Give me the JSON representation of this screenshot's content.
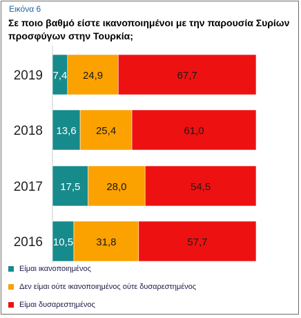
{
  "figure_label": "Εικόνα 6",
  "title": "Σε ποιο βαθμό είστε ικανοποιημένοι με την παρουσία Συρίων προσφύγων στην Τουρκία;",
  "chart_data": {
    "type": "bar",
    "orientation": "horizontal",
    "stacked": true,
    "title": "Σε ποιο βαθμό είστε ικανοποιημένοι με την παρουσία Συρίων προσφύγων στην Τουρκία;",
    "categories": [
      "2019",
      "2018",
      "2017",
      "2016"
    ],
    "series": [
      {
        "name": "Είμαι ικανοποιημένος",
        "color": "#178a8c",
        "values": [
          7.4,
          13.6,
          17.5,
          10.5
        ],
        "labels": [
          "7,4",
          "13,6",
          "17,5",
          "10,5"
        ]
      },
      {
        "name": "Δεν είμαι ούτε ικανοποιημένος ούτε δυσαρεστημένος",
        "color": "#fba100",
        "values": [
          24.9,
          25.4,
          28.0,
          31.8
        ],
        "labels": [
          "24,9",
          "25,4",
          "28,0",
          "31,8"
        ]
      },
      {
        "name": "Είμαι δυσαρεστημένος",
        "color": "#ee1111",
        "values": [
          67.7,
          61.0,
          54.5,
          57.7
        ],
        "labels": [
          "67,7",
          "61,0",
          "54,5",
          "57,7"
        ]
      }
    ],
    "xlim": [
      0,
      100
    ],
    "grid": false,
    "legend_position": "bottom"
  }
}
